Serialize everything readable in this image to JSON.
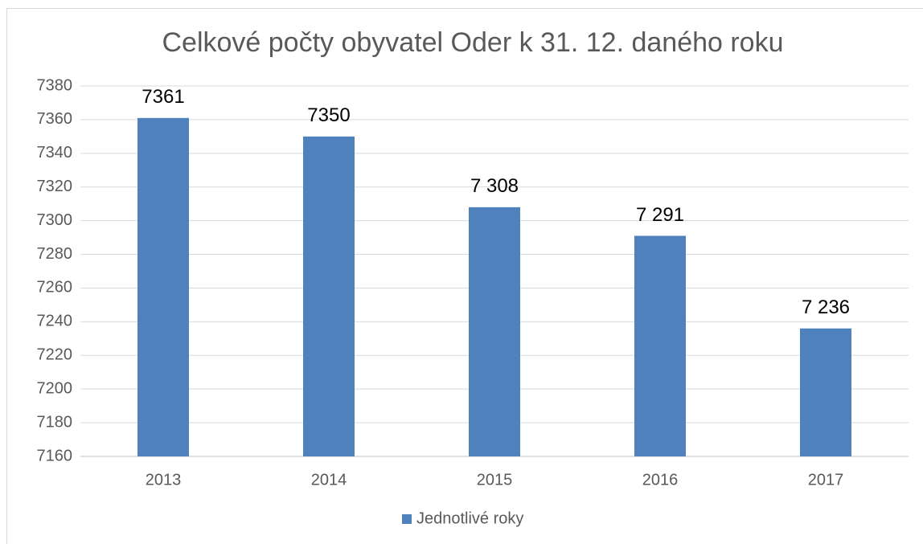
{
  "chart_data": {
    "type": "bar",
    "title": "Celkové počty obyvatel Oder k 31. 12. daného roku",
    "categories": [
      "2013",
      "2014",
      "2015",
      "2016",
      "2017"
    ],
    "series": [
      {
        "name": "Jednotlivé roky",
        "color": "#4f81bd",
        "values": [
          7361,
          7350,
          7308,
          7291,
          7236
        ],
        "value_labels": [
          "7361",
          "7350",
          "7 308",
          "7 291",
          "7 236"
        ]
      }
    ],
    "ylim": [
      7160,
      7380
    ],
    "yticks": [
      7160,
      7180,
      7200,
      7220,
      7240,
      7260,
      7280,
      7300,
      7320,
      7340,
      7360,
      7380
    ],
    "grid": true,
    "legend": "bottom"
  }
}
